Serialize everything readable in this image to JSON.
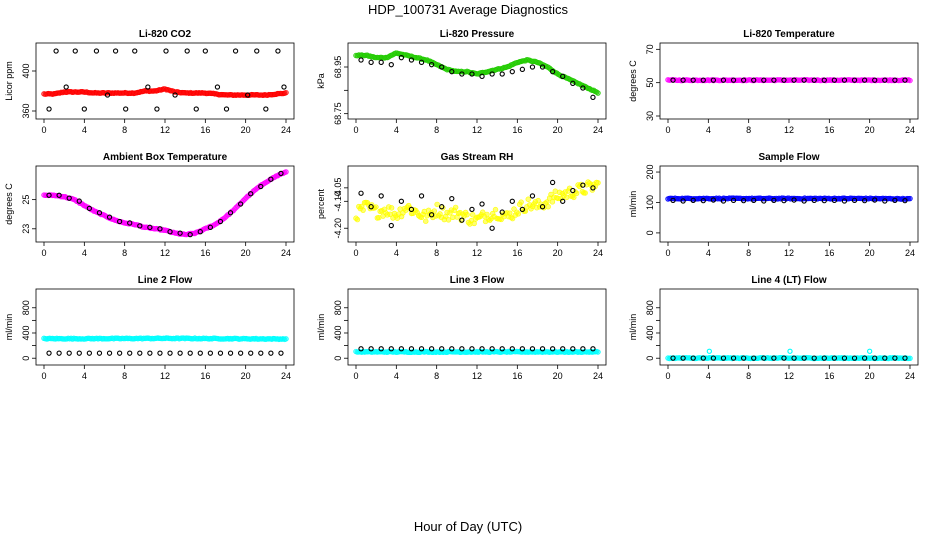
{
  "figure": {
    "title": "HDP_100731  Average Diagnostics",
    "xlabel": "Hour of Day (UTC)"
  },
  "colors": {
    "black": "#000000",
    "red": "#ff0000",
    "green": "#22cc00",
    "magenta": "#ff00ff",
    "yellow": "#ffff00",
    "blue": "#0000ff",
    "cyan": "#00ffff"
  },
  "chart_data": [
    {
      "type": "scatter",
      "title": "Li-820 CO2",
      "ylabel": "Licor ppm",
      "xlim": [
        0,
        24
      ],
      "ylim": [
        355,
        425
      ],
      "x_ticks": [
        0,
        4,
        8,
        12,
        16,
        20,
        24
      ],
      "y_ticks": [
        360,
        400
      ],
      "series": [
        {
          "name": "primary",
          "color": "red",
          "style": "dense",
          "x": [
            0,
            1,
            2,
            3,
            4,
            5,
            6,
            7,
            8,
            9,
            10,
            11,
            12,
            13,
            14,
            15,
            16,
            17,
            18,
            19,
            20,
            21,
            22,
            23,
            24
          ],
          "y": [
            377,
            377,
            379,
            379,
            379,
            378,
            378,
            378,
            378,
            378,
            380,
            380,
            382,
            379,
            378,
            378,
            378,
            377,
            376,
            376,
            376,
            376,
            376,
            377,
            378
          ]
        },
        {
          "name": "secondary",
          "color": "black",
          "style": "open",
          "x": [
            0.5,
            1.2,
            2.2,
            3.1,
            4.0,
            5.2,
            6.3,
            7.1,
            8.1,
            9.0,
            10.3,
            11.2,
            12.1,
            13.0,
            14.2,
            15.1,
            16.0,
            17.2,
            18.1,
            19.0,
            20.2,
            21.1,
            22.0,
            23.2,
            23.8
          ],
          "y": [
            362,
            420,
            384,
            420,
            362,
            420,
            376,
            420,
            362,
            420,
            384,
            362,
            420,
            376,
            420,
            362,
            420,
            384,
            362,
            420,
            376,
            420,
            362,
            420,
            384
          ]
        }
      ]
    },
    {
      "type": "scatter",
      "title": "Li-820 Pressure",
      "ylabel": "kPa",
      "xlim": [
        0,
        24
      ],
      "ylim": [
        68.74,
        69.04
      ],
      "x_ticks": [
        0,
        4,
        8,
        12,
        16,
        20,
        24
      ],
      "y_ticks": [
        68.75,
        68.85,
        68.95
      ],
      "y_tick_labels": [
        "68.75",
        "",
        "68.95"
      ],
      "series": [
        {
          "name": "primary",
          "color": "green",
          "style": "dense",
          "x": [
            0,
            1,
            2,
            3,
            4,
            5,
            6,
            7,
            8,
            9,
            10,
            11,
            12,
            13,
            14,
            15,
            16,
            17,
            18,
            19,
            20,
            21,
            22,
            23,
            24
          ],
          "y": [
            69.0,
            69.0,
            68.99,
            68.99,
            69.01,
            69.0,
            68.99,
            68.98,
            68.96,
            68.94,
            68.93,
            68.93,
            68.92,
            68.93,
            68.94,
            68.95,
            68.97,
            68.98,
            68.97,
            68.95,
            68.92,
            68.9,
            68.88,
            68.86,
            68.84
          ]
        },
        {
          "name": "secondary",
          "color": "black",
          "style": "open",
          "x": [
            0.5,
            1.5,
            2.5,
            3.5,
            4.5,
            5.5,
            6.5,
            7.5,
            8.5,
            9.5,
            10.5,
            11.5,
            12.5,
            13.5,
            14.5,
            15.5,
            16.5,
            17.5,
            18.5,
            19.5,
            20.5,
            21.5,
            22.5,
            23.5
          ],
          "y": [
            68.98,
            68.97,
            68.97,
            68.96,
            68.99,
            68.98,
            68.97,
            68.96,
            68.95,
            68.93,
            68.92,
            68.92,
            68.91,
            68.92,
            68.92,
            68.93,
            68.94,
            68.95,
            68.95,
            68.93,
            68.91,
            68.88,
            68.86,
            68.82
          ]
        }
      ]
    },
    {
      "type": "scatter",
      "title": "Li-820 Temperature",
      "ylabel": "degrees C",
      "xlim": [
        0,
        24
      ],
      "ylim": [
        30,
        72
      ],
      "x_ticks": [
        0,
        4,
        8,
        12,
        16,
        20,
        24
      ],
      "y_ticks": [
        30,
        50,
        70
      ],
      "series": [
        {
          "name": "primary",
          "color": "magenta",
          "style": "dense",
          "x": [
            0,
            4,
            8,
            12,
            16,
            20,
            24
          ],
          "y": [
            51.5,
            51.5,
            51.5,
            51.5,
            51.5,
            51.5,
            51.5
          ]
        },
        {
          "name": "secondary",
          "color": "black",
          "style": "open",
          "x": [
            0.5,
            1.5,
            2.5,
            3.5,
            4.5,
            5.5,
            6.5,
            7.5,
            8.5,
            9.5,
            10.5,
            11.5,
            12.5,
            13.5,
            14.5,
            15.5,
            16.5,
            17.5,
            18.5,
            19.5,
            20.5,
            21.5,
            22.5,
            23.5
          ],
          "y": [
            51.5,
            51.5,
            51.5,
            51.5,
            51.5,
            51.5,
            51.5,
            51.5,
            51.5,
            51.5,
            51.5,
            51.5,
            51.5,
            51.5,
            51.5,
            51.5,
            51.5,
            51.5,
            51.5,
            51.5,
            51.5,
            51.5,
            51.5,
            51.5
          ]
        }
      ]
    },
    {
      "type": "scatter",
      "title": "Ambient Box Temperature",
      "ylabel": "degrees C",
      "xlim": [
        0,
        24
      ],
      "ylim": [
        22.3,
        27.1
      ],
      "x_ticks": [
        0,
        4,
        8,
        12,
        16,
        20,
        24
      ],
      "y_ticks": [
        23,
        25
      ],
      "series": [
        {
          "name": "primary",
          "color": "magenta",
          "style": "dense",
          "x": [
            0,
            1,
            2,
            3,
            4,
            5,
            6,
            7,
            8,
            9,
            10,
            11,
            12,
            13,
            14,
            15,
            16,
            17,
            18,
            19,
            20,
            21,
            22,
            23,
            24
          ],
          "y": [
            25.3,
            25.3,
            25.2,
            25.0,
            24.6,
            24.2,
            23.9,
            23.6,
            23.4,
            23.3,
            23.1,
            23.0,
            22.9,
            22.7,
            22.6,
            22.7,
            23.0,
            23.3,
            23.8,
            24.4,
            25.1,
            25.7,
            26.2,
            26.6,
            26.9
          ]
        },
        {
          "name": "secondary",
          "color": "black",
          "style": "open",
          "x": [
            0.5,
            1.5,
            2.5,
            3.5,
            4.5,
            5.5,
            6.5,
            7.5,
            8.5,
            9.5,
            10.5,
            11.5,
            12.5,
            13.5,
            14.5,
            15.5,
            16.5,
            17.5,
            18.5,
            19.5,
            20.5,
            21.5,
            22.5,
            23.5
          ],
          "y": [
            25.3,
            25.3,
            25.1,
            24.9,
            24.4,
            24.1,
            23.8,
            23.5,
            23.4,
            23.2,
            23.1,
            23.0,
            22.8,
            22.7,
            22.6,
            22.8,
            23.1,
            23.5,
            24.1,
            24.7,
            25.4,
            25.9,
            26.4,
            26.8
          ]
        }
      ]
    },
    {
      "type": "scatter",
      "title": "Gas Stream RH",
      "ylabel": "percent",
      "xlim": [
        0,
        24
      ],
      "ylim": [
        -4.24,
        -3.98
      ],
      "x_ticks": [
        0,
        4,
        8,
        12,
        16,
        20,
        24
      ],
      "y_ticks": [
        -4.2,
        -4.1,
        -4.05
      ],
      "y_tick_labels": [
        "-4.20",
        "-4.10",
        "-4.05"
      ],
      "series": [
        {
          "name": "primary",
          "color": "yellow",
          "style": "dense-scatter",
          "x": [
            0,
            1,
            2,
            3,
            4,
            5,
            6,
            7,
            8,
            9,
            10,
            11,
            12,
            13,
            14,
            15,
            16,
            17,
            18,
            19,
            20,
            21,
            22,
            23,
            24
          ],
          "y": [
            -4.15,
            -4.12,
            -4.14,
            -4.13,
            -4.15,
            -4.12,
            -4.14,
            -4.16,
            -4.13,
            -4.15,
            -4.14,
            -4.16,
            -4.17,
            -4.15,
            -4.14,
            -4.16,
            -4.13,
            -4.11,
            -4.12,
            -4.1,
            -4.08,
            -4.07,
            -4.06,
            -4.05,
            -4.04
          ]
        },
        {
          "name": "secondary",
          "color": "black",
          "style": "open",
          "x": [
            0.5,
            1.5,
            2.5,
            3.5,
            4.5,
            5.5,
            6.5,
            7.5,
            8.5,
            9.5,
            10.5,
            11.5,
            12.5,
            13.5,
            14.5,
            15.5,
            16.5,
            17.5,
            18.5,
            19.5,
            20.5,
            21.5,
            22.5,
            23.5
          ],
          "y": [
            -4.07,
            -4.12,
            -4.08,
            -4.19,
            -4.1,
            -4.13,
            -4.08,
            -4.15,
            -4.12,
            -4.09,
            -4.17,
            -4.13,
            -4.11,
            -4.2,
            -4.14,
            -4.1,
            -4.13,
            -4.08,
            -4.12,
            -4.03,
            -4.1,
            -4.06,
            -4.04,
            -4.05
          ]
        }
      ]
    },
    {
      "type": "scatter",
      "title": "Sample Flow",
      "ylabel": "ml/min",
      "xlim": [
        0,
        24
      ],
      "ylim": [
        -20,
        210
      ],
      "x_ticks": [
        0,
        4,
        8,
        12,
        16,
        20,
        24
      ],
      "y_ticks": [
        0,
        100,
        200
      ],
      "series": [
        {
          "name": "primary",
          "color": "blue",
          "style": "dense",
          "x": [
            0,
            4,
            8,
            12,
            16,
            20,
            24
          ],
          "y": [
            113,
            113,
            113,
            113,
            113,
            113,
            112
          ]
        },
        {
          "name": "secondary",
          "color": "black",
          "style": "open",
          "x": [
            0.5,
            1.5,
            2.5,
            3.5,
            4.5,
            5.5,
            6.5,
            7.5,
            8.5,
            9.5,
            10.5,
            11.5,
            12.5,
            13.5,
            14.5,
            15.5,
            16.5,
            17.5,
            18.5,
            19.5,
            20.5,
            21.5,
            22.5,
            23.5
          ],
          "y": [
            107,
            105,
            107,
            106,
            108,
            105,
            107,
            106,
            107,
            105,
            107,
            106,
            108,
            105,
            107,
            106,
            107,
            105,
            107,
            106,
            108,
            105,
            107,
            106
          ]
        }
      ]
    },
    {
      "type": "scatter",
      "title": "Line 2 Flow",
      "ylabel": "ml/min",
      "xlim": [
        0,
        24
      ],
      "ylim": [
        -60,
        1050
      ],
      "x_ticks": [
        0,
        4,
        8,
        12,
        16,
        20,
        24
      ],
      "y_ticks": [
        0,
        200,
        400,
        600,
        800
      ],
      "y_tick_labels": [
        "0",
        "",
        "400",
        "",
        "800"
      ],
      "series": [
        {
          "name": "primary",
          "color": "cyan",
          "style": "dense",
          "x": [
            0,
            4,
            8,
            12,
            16,
            20,
            24
          ],
          "y": [
            310,
            310,
            312,
            315,
            312,
            308,
            305
          ]
        },
        {
          "name": "secondary",
          "color": "black",
          "style": "open",
          "x": [
            0.5,
            1.5,
            2.5,
            3.5,
            4.5,
            5.5,
            6.5,
            7.5,
            8.5,
            9.5,
            10.5,
            11.5,
            12.5,
            13.5,
            14.5,
            15.5,
            16.5,
            17.5,
            18.5,
            19.5,
            20.5,
            21.5,
            22.5,
            23.5
          ],
          "y": [
            80,
            80,
            80,
            80,
            80,
            80,
            80,
            80,
            80,
            80,
            80,
            80,
            80,
            80,
            80,
            80,
            80,
            80,
            80,
            80,
            80,
            80,
            80,
            80
          ]
        }
      ]
    },
    {
      "type": "scatter",
      "title": "Line 3 Flow",
      "ylabel": "ml/min",
      "xlim": [
        0,
        24
      ],
      "ylim": [
        -60,
        1050
      ],
      "x_ticks": [
        0,
        4,
        8,
        12,
        16,
        20,
        24
      ],
      "y_ticks": [
        0,
        200,
        400,
        600,
        800
      ],
      "y_tick_labels": [
        "0",
        "",
        "400",
        "",
        "800"
      ],
      "series": [
        {
          "name": "primary",
          "color": "cyan",
          "style": "dense",
          "x": [
            0,
            4,
            8,
            12,
            16,
            20,
            24
          ],
          "y": [
            100,
            100,
            100,
            100,
            100,
            100,
            100
          ]
        },
        {
          "name": "secondary",
          "color": "black",
          "style": "open",
          "x": [
            0.5,
            1.5,
            2.5,
            3.5,
            4.5,
            5.5,
            6.5,
            7.5,
            8.5,
            9.5,
            10.5,
            11.5,
            12.5,
            13.5,
            14.5,
            15.5,
            16.5,
            17.5,
            18.5,
            19.5,
            20.5,
            21.5,
            22.5,
            23.5
          ],
          "y": [
            150,
            150,
            150,
            150,
            150,
            150,
            150,
            150,
            150,
            150,
            150,
            150,
            150,
            150,
            150,
            150,
            150,
            150,
            150,
            150,
            150,
            150,
            150,
            150
          ]
        }
      ]
    },
    {
      "type": "scatter",
      "title": "Line 4 (LT) Flow",
      "ylabel": "ml/min",
      "xlim": [
        0,
        24
      ],
      "ylim": [
        -60,
        1050
      ],
      "x_ticks": [
        0,
        4,
        8,
        12,
        16,
        20,
        24
      ],
      "y_ticks": [
        0,
        200,
        400,
        600,
        800
      ],
      "y_tick_labels": [
        "0",
        "",
        "400",
        "",
        "800"
      ],
      "series": [
        {
          "name": "primary",
          "color": "cyan",
          "style": "dense",
          "x": [
            0,
            24
          ],
          "y": [
            2,
            2
          ]
        },
        {
          "name": "primary-outliers",
          "color": "cyan",
          "style": "open",
          "x": [
            4.1,
            12.1,
            20.0
          ],
          "y": [
            110,
            110,
            110
          ]
        },
        {
          "name": "secondary",
          "color": "black",
          "style": "open",
          "x": [
            0.5,
            1.5,
            2.5,
            3.5,
            4.5,
            5.5,
            6.5,
            7.5,
            8.5,
            9.5,
            10.5,
            11.5,
            12.5,
            13.5,
            14.5,
            15.5,
            16.5,
            17.5,
            18.5,
            19.5,
            20.5,
            21.5,
            22.5,
            23.5
          ],
          "y": [
            2,
            2,
            2,
            2,
            2,
            2,
            2,
            2,
            2,
            2,
            2,
            2,
            2,
            2,
            2,
            2,
            2,
            2,
            2,
            2,
            2,
            2,
            2,
            2
          ]
        }
      ]
    }
  ]
}
